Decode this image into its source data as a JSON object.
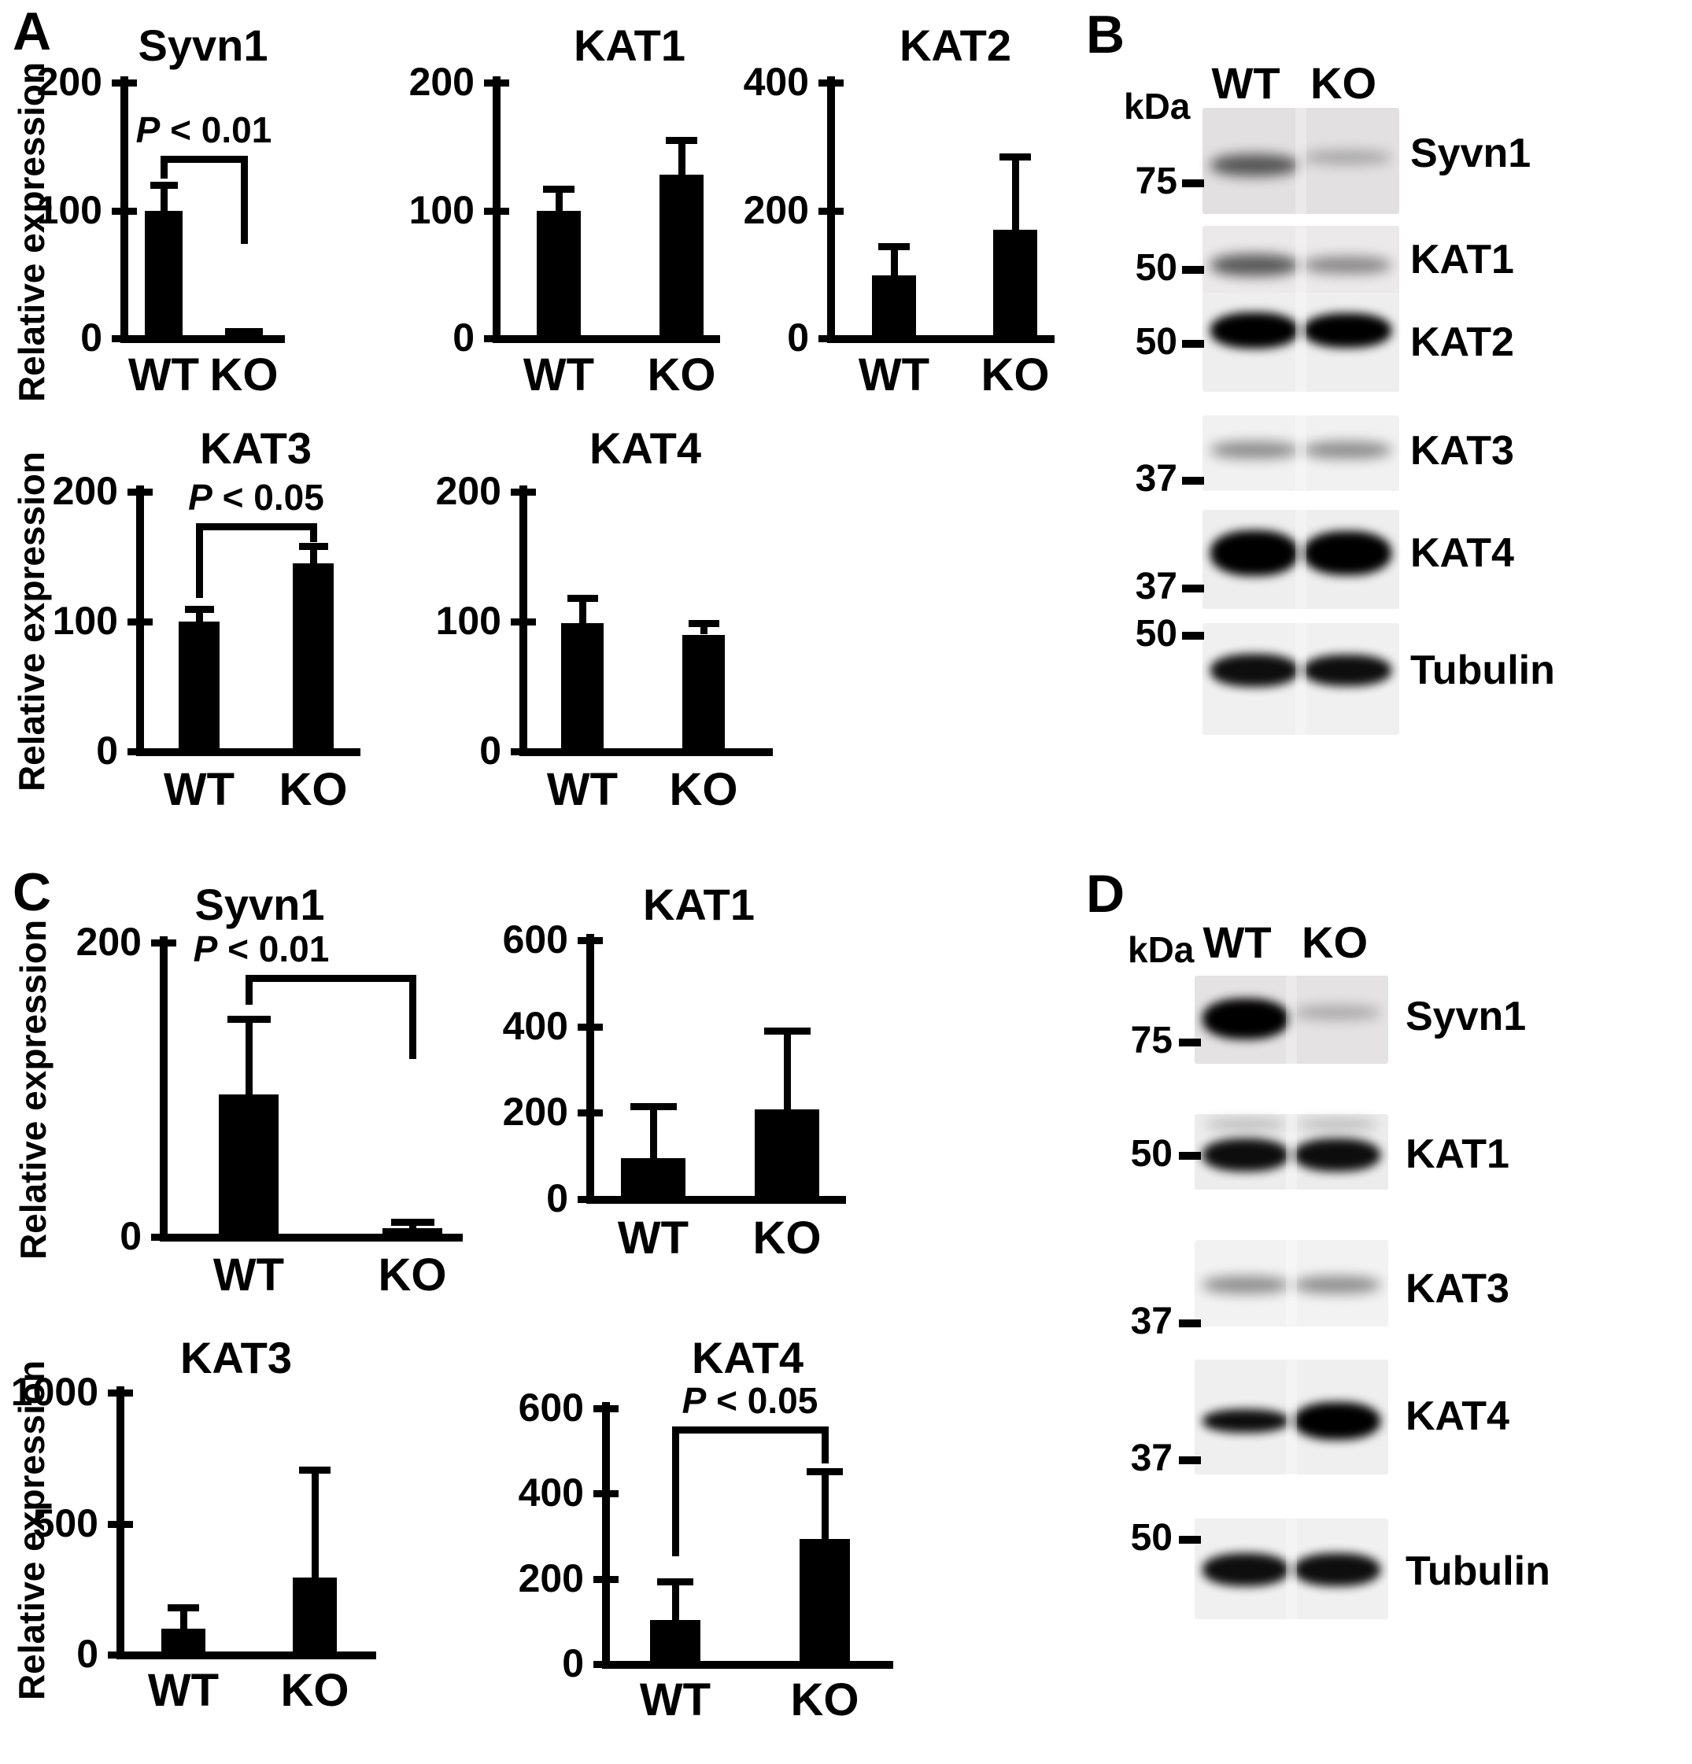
{
  "figure": {
    "panels": {
      "A": {
        "label": "A"
      },
      "B": {
        "label": "B"
      },
      "C": {
        "label": "C"
      },
      "D": {
        "label": "D"
      }
    }
  },
  "colors": {
    "bar": "#000000",
    "axis": "#000000",
    "text": "#000000",
    "background": "#ffffff"
  },
  "chart_data": [
    {
      "id": "A-syvn1",
      "panel": "A",
      "type": "bar",
      "title": "Syvn1",
      "ylabel": "Relative expression",
      "categories": [
        "WT",
        "KO"
      ],
      "values": [
        100,
        8
      ],
      "errors": [
        20,
        0
      ],
      "ylim": [
        0,
        200
      ],
      "yticks": [
        0,
        100,
        200
      ],
      "grid": false,
      "significance": {
        "label": "P < 0.01",
        "bar_top": 143,
        "left_end": 125,
        "right_end": 74
      }
    },
    {
      "id": "A-kat1",
      "panel": "A",
      "type": "bar",
      "title": "KAT1",
      "categories": [
        "WT",
        "KO"
      ],
      "values": [
        100,
        128
      ],
      "errors": [
        17,
        27
      ],
      "ylim": [
        0,
        200
      ],
      "yticks": [
        0,
        100,
        200
      ],
      "grid": false
    },
    {
      "id": "A-kat2",
      "panel": "A",
      "type": "bar",
      "title": "KAT2",
      "categories": [
        "WT",
        "KO"
      ],
      "values": [
        98,
        170
      ],
      "errors": [
        46,
        114
      ],
      "ylim": [
        0,
        400
      ],
      "yticks": [
        0,
        200,
        400
      ],
      "grid": false
    },
    {
      "id": "A-kat3",
      "panel": "A",
      "type": "bar",
      "title": "KAT3",
      "ylabel": "Relative expression",
      "categories": [
        "WT",
        "KO"
      ],
      "values": [
        100,
        145
      ],
      "errors": [
        10,
        13
      ],
      "ylim": [
        0,
        200
      ],
      "yticks": [
        0,
        100,
        200
      ],
      "grid": false,
      "significance": {
        "label": "P < 0.05",
        "bar_top": 176,
        "left_end": 118,
        "right_end": 161
      }
    },
    {
      "id": "A-kat4",
      "panel": "A",
      "type": "bar",
      "title": "KAT4",
      "categories": [
        "WT",
        "KO"
      ],
      "values": [
        99,
        90
      ],
      "errors": [
        19,
        9
      ],
      "ylim": [
        0,
        200
      ],
      "yticks": [
        0,
        100,
        200
      ],
      "grid": false
    },
    {
      "id": "C-syvn1",
      "panel": "C",
      "type": "bar",
      "title": "Syvn1",
      "ylabel": "Relative expression",
      "categories": [
        "WT",
        "KO"
      ],
      "values": [
        97,
        6
      ],
      "errors": [
        51,
        4
      ],
      "ylim": [
        0,
        200
      ],
      "yticks": [
        0,
        200
      ],
      "grid": false,
      "significance": {
        "label": "P < 0.01",
        "bar_top": 178,
        "left_end": 158,
        "right_end": 121
      }
    },
    {
      "id": "C-kat1",
      "panel": "C",
      "type": "bar",
      "title": "KAT1",
      "categories": [
        "WT",
        "KO"
      ],
      "values": [
        95,
        207
      ],
      "errors": [
        120,
        183
      ],
      "ylim": [
        0,
        600
      ],
      "yticks": [
        0,
        200,
        400,
        600
      ],
      "grid": false
    },
    {
      "id": "C-kat3",
      "panel": "C",
      "type": "bar",
      "title": "KAT3",
      "ylabel": "Relative expression",
      "categories": [
        "WT",
        "KO"
      ],
      "values": [
        99,
        294
      ],
      "errors": [
        81,
        411
      ],
      "ylim": [
        0,
        1000
      ],
      "yticks": [
        0,
        500,
        1000
      ],
      "grid": false
    },
    {
      "id": "C-kat4",
      "panel": "C",
      "type": "bar",
      "title": "KAT4",
      "categories": [
        "WT",
        "KO"
      ],
      "values": [
        103,
        293
      ],
      "errors": [
        90,
        160
      ],
      "ylim": [
        0,
        600
      ],
      "yticks": [
        0,
        200,
        400,
        600
      ],
      "grid": false,
      "significance": {
        "label": "P < 0.05",
        "bar_top": 557,
        "left_end": 252,
        "right_end": 470
      }
    }
  ],
  "blot_data": {
    "B": {
      "kda_label": "kDa",
      "columns": [
        "WT",
        "KO"
      ],
      "rows": [
        {
          "protein": "Syvn1",
          "marker_kda": "75",
          "wt": "medium",
          "ko": "faint"
        },
        {
          "protein": "KAT1",
          "marker_kda": "50",
          "wt": "medium",
          "ko": "light"
        },
        {
          "protein": "KAT2",
          "marker_kda": "50",
          "wt": "very-dark",
          "ko": "very-dark"
        },
        {
          "protein": "KAT3",
          "marker_kda": "37",
          "wt": "light",
          "ko": "light"
        },
        {
          "protein": "KAT4",
          "marker_kda": "37",
          "wt": "very-dark",
          "ko": "very-dark"
        },
        {
          "protein": "Tubulin",
          "marker_kda": "50",
          "wt": "dark",
          "ko": "dark"
        }
      ]
    },
    "D": {
      "kda_label": "kDa",
      "columns": [
        "WT",
        "KO"
      ],
      "rows": [
        {
          "protein": "Syvn1",
          "marker_kda": "75",
          "wt": "very-dark",
          "ko": "faint"
        },
        {
          "protein": "KAT1",
          "marker_kda": "50",
          "wt": "dark",
          "ko": "dark"
        },
        {
          "protein": "KAT3",
          "marker_kda": "37",
          "wt": "light",
          "ko": "light"
        },
        {
          "protein": "KAT4",
          "marker_kda": "37",
          "wt": "dark",
          "ko": "very-dark"
        },
        {
          "protein": "Tubulin",
          "marker_kda": "50",
          "wt": "dark",
          "ko": "dark"
        }
      ]
    }
  }
}
